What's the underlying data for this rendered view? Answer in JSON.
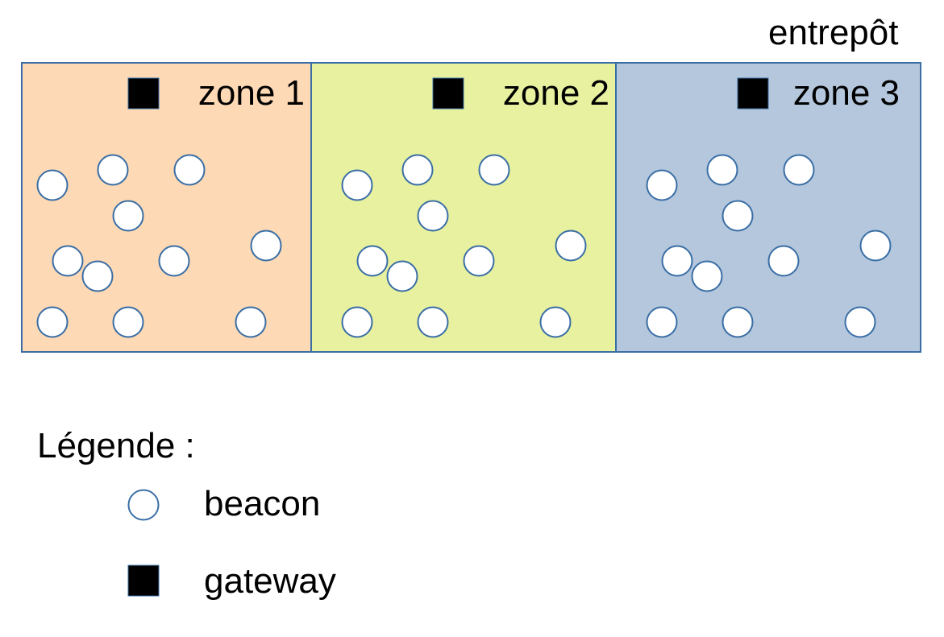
{
  "title": "entrepôt",
  "zones": [
    {
      "label": "zone 1",
      "fill": "#fdd9b5"
    },
    {
      "label": "zone 2",
      "fill": "#e8f1a0"
    },
    {
      "label": "zone 3",
      "fill": "#b4c7dc"
    }
  ],
  "legend": {
    "title": "Légende :",
    "beacon": "beacon",
    "gateway": "gateway"
  },
  "colors": {
    "border": "#3a6ea5",
    "beacon_fill": "#ffffff",
    "gateway_fill": "#000000"
  }
}
